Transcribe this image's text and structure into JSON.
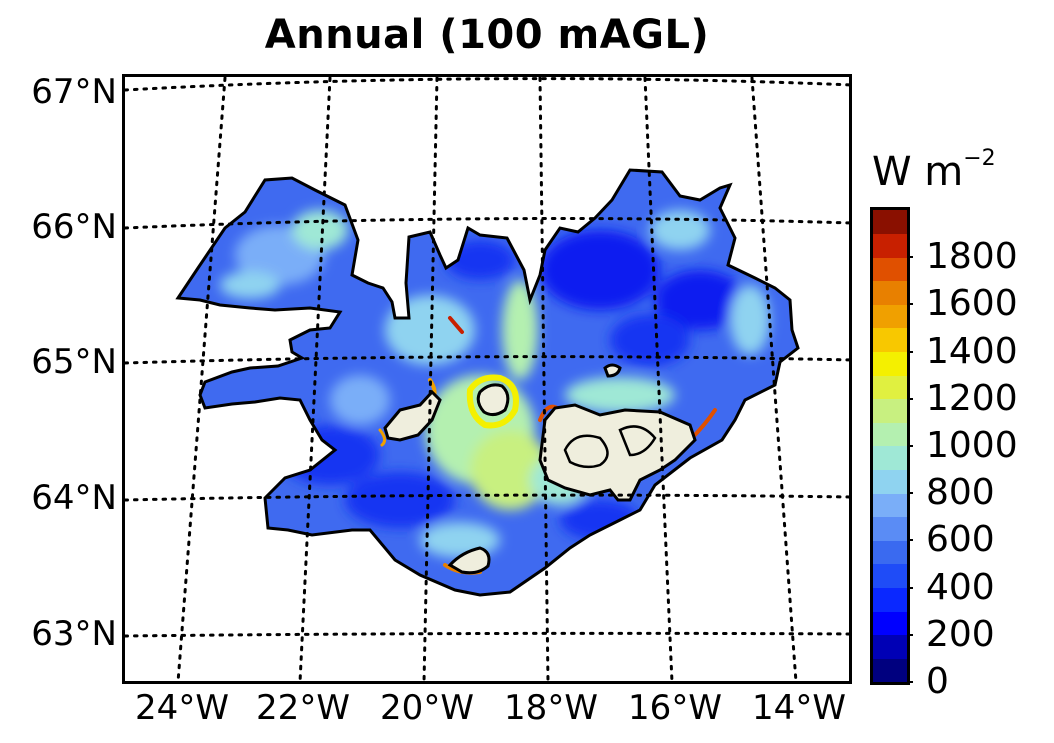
{
  "title": "Annual (100 mAGL)",
  "colorbar": {
    "unit": "W m",
    "unit_exponent": "−2",
    "tick_labels": [
      "0",
      "200",
      "400",
      "600",
      "800",
      "1000",
      "1200",
      "1400",
      "1600",
      "1800"
    ],
    "range": [
      0,
      2000
    ],
    "step": 100,
    "colors": [
      "#00007f",
      "#0000b5",
      "#0000ff",
      "#0a28ff",
      "#1f4cf7",
      "#3a6af0",
      "#5a8cf5",
      "#7aaef8",
      "#8fd3f0",
      "#9fe8d6",
      "#b4f0b0",
      "#c8f080",
      "#e0f040",
      "#f4f000",
      "#f8c800",
      "#f0a000",
      "#e88000",
      "#e05000",
      "#c82000",
      "#8a1000"
    ]
  },
  "latitude_labels": [
    "67°N",
    "66°N",
    "65°N",
    "64°N",
    "63°N"
  ],
  "longitude_labels": [
    "24°W",
    "22°W",
    "20°W",
    "18°W",
    "16°W",
    "14°W"
  ],
  "map": {
    "region": "Iceland",
    "land_base_color": "#3f6af0",
    "glacier_color": "#efeedd",
    "grid_style": "dotted"
  }
}
